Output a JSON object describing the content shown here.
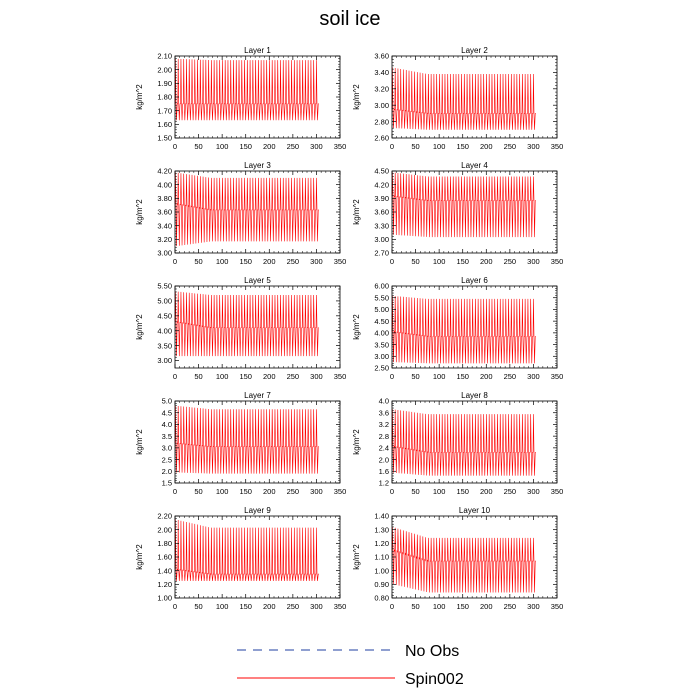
{
  "title": "soil ice",
  "chart_data": [
    {
      "type": "line",
      "title": "Layer 1",
      "ylabel": "kg/m^2",
      "xlim": [
        0,
        350
      ],
      "xticks": [
        0,
        50,
        100,
        150,
        200,
        250,
        300,
        350
      ],
      "ylim": [
        1.5,
        2.1
      ],
      "yticks": [
        "1.50",
        "1.60",
        "1.70",
        "1.80",
        "1.90",
        "2.00",
        "2.10"
      ],
      "cycles": 52,
      "x_end": 305,
      "series": [
        {
          "name": "Spin002",
          "color": "#ff0000",
          "osc_max_start": 2.08,
          "osc_max_end": 2.07,
          "osc_min_start": 1.63,
          "osc_min_end": 1.63,
          "mid_start": 1.75,
          "mid_end": 1.75
        }
      ]
    },
    {
      "type": "line",
      "title": "Layer 2",
      "ylabel": "kg/m^2",
      "xlim": [
        0,
        350
      ],
      "xticks": [
        0,
        50,
        100,
        150,
        200,
        250,
        300,
        350
      ],
      "ylim": [
        2.6,
        3.6
      ],
      "yticks": [
        "2.60",
        "2.80",
        "3.00",
        "3.20",
        "3.40",
        "3.60"
      ],
      "cycles": 52,
      "x_end": 305,
      "series": [
        {
          "name": "Spin002",
          "color": "#ff0000",
          "osc_max_start": 3.46,
          "osc_max_end": 3.38,
          "osc_min_start": 2.72,
          "osc_min_end": 2.7,
          "mid_start": 2.95,
          "mid_end": 2.9
        }
      ]
    },
    {
      "type": "line",
      "title": "Layer 3",
      "ylabel": "kg/m^2",
      "xlim": [
        0,
        350
      ],
      "xticks": [
        0,
        50,
        100,
        150,
        200,
        250,
        300,
        350
      ],
      "ylim": [
        3.0,
        4.2
      ],
      "yticks": [
        "3.00",
        "3.20",
        "3.40",
        "3.60",
        "3.80",
        "4.00",
        "4.20"
      ],
      "cycles": 52,
      "x_end": 305,
      "series": [
        {
          "name": "Spin002",
          "color": "#ff0000",
          "osc_max_start": 4.18,
          "osc_max_end": 4.1,
          "osc_min_start": 3.1,
          "osc_min_end": 3.17,
          "mid_start": 3.72,
          "mid_end": 3.63
        }
      ]
    },
    {
      "type": "line",
      "title": "Layer 4",
      "ylabel": "kg/m^2",
      "xlim": [
        0,
        350
      ],
      "xticks": [
        0,
        50,
        100,
        150,
        200,
        250,
        300,
        350
      ],
      "ylim": [
        2.7,
        4.5
      ],
      "yticks": [
        "2.70",
        "3.00",
        "3.30",
        "3.60",
        "3.90",
        "4.20",
        "4.50"
      ],
      "cycles": 52,
      "x_end": 305,
      "series": [
        {
          "name": "Spin002",
          "color": "#ff0000",
          "osc_max_start": 4.47,
          "osc_max_end": 4.38,
          "osc_min_start": 3.1,
          "osc_min_end": 3.05,
          "mid_start": 3.95,
          "mid_end": 3.85
        }
      ]
    },
    {
      "type": "line",
      "title": "Layer 5",
      "ylabel": "kg/m^2",
      "xlim": [
        0,
        350
      ],
      "xticks": [
        0,
        50,
        100,
        150,
        200,
        250,
        300,
        350
      ],
      "ylim": [
        2.75,
        5.5
      ],
      "yticks": [
        "3.00",
        "3.50",
        "4.00",
        "4.50",
        "5.00",
        "5.50"
      ],
      "cycles": 52,
      "x_end": 305,
      "series": [
        {
          "name": "Spin002",
          "color": "#ff0000",
          "osc_max_start": 5.32,
          "osc_max_end": 5.2,
          "osc_min_start": 3.15,
          "osc_min_end": 3.15,
          "mid_start": 4.3,
          "mid_end": 4.1
        }
      ]
    },
    {
      "type": "line",
      "title": "Layer 6",
      "ylabel": "kg/m^2",
      "xlim": [
        0,
        350
      ],
      "xticks": [
        0,
        50,
        100,
        150,
        200,
        250,
        300,
        350
      ],
      "ylim": [
        2.5,
        6.0
      ],
      "yticks": [
        "2.50",
        "3.00",
        "3.50",
        "4.00",
        "4.50",
        "5.00",
        "5.50",
        "6.00"
      ],
      "cycles": 52,
      "x_end": 305,
      "series": [
        {
          "name": "Spin002",
          "color": "#ff0000",
          "osc_max_start": 5.58,
          "osc_max_end": 5.45,
          "osc_min_start": 2.75,
          "osc_min_end": 2.7,
          "mid_start": 4.05,
          "mid_end": 3.85
        }
      ]
    },
    {
      "type": "line",
      "title": "Layer 7",
      "ylabel": "kg/m^2",
      "xlim": [
        0,
        350
      ],
      "xticks": [
        0,
        50,
        100,
        150,
        200,
        250,
        300,
        350
      ],
      "ylim": [
        1.5,
        5.0
      ],
      "yticks": [
        "1.5",
        "2.0",
        "2.5",
        "3.0",
        "3.5",
        "4.0",
        "4.5",
        "5.0"
      ],
      "cycles": 52,
      "x_end": 305,
      "series": [
        {
          "name": "Spin002",
          "color": "#ff0000",
          "osc_max_start": 4.8,
          "osc_max_end": 4.65,
          "osc_min_start": 1.95,
          "osc_min_end": 1.9,
          "mid_start": 3.2,
          "mid_end": 3.05
        }
      ]
    },
    {
      "type": "line",
      "title": "Layer 8",
      "ylabel": "kg/m^2",
      "xlim": [
        0,
        350
      ],
      "xticks": [
        0,
        50,
        100,
        150,
        200,
        250,
        300,
        350
      ],
      "ylim": [
        1.2,
        4.0
      ],
      "yticks": [
        "1.2",
        "1.6",
        "2.0",
        "2.4",
        "2.8",
        "3.2",
        "3.6",
        "4.0"
      ],
      "cycles": 52,
      "x_end": 305,
      "series": [
        {
          "name": "Spin002",
          "color": "#ff0000",
          "osc_max_start": 3.72,
          "osc_max_end": 3.55,
          "osc_min_start": 1.55,
          "osc_min_end": 1.45,
          "mid_start": 2.45,
          "mid_end": 2.25
        }
      ]
    },
    {
      "type": "line",
      "title": "Layer 9",
      "ylabel": "kg/m^2",
      "xlim": [
        0,
        350
      ],
      "xticks": [
        0,
        50,
        100,
        150,
        200,
        250,
        300,
        350
      ],
      "ylim": [
        1.0,
        2.2
      ],
      "yticks": [
        "1.00",
        "1.20",
        "1.40",
        "1.60",
        "1.80",
        "2.00",
        "2.20"
      ],
      "cycles": 52,
      "x_end": 305,
      "series": [
        {
          "name": "Spin002",
          "color": "#ff0000",
          "osc_max_start": 2.15,
          "osc_max_end": 2.03,
          "osc_min_start": 1.25,
          "osc_min_end": 1.25,
          "mid_start": 1.42,
          "mid_end": 1.35
        }
      ]
    },
    {
      "type": "line",
      "title": "Layer 10",
      "ylabel": "kg/m^2",
      "xlim": [
        0,
        350
      ],
      "xticks": [
        0,
        50,
        100,
        150,
        200,
        250,
        300,
        350
      ],
      "ylim": [
        0.8,
        1.4
      ],
      "yticks": [
        "0.80",
        "0.90",
        "1.00",
        "1.10",
        "1.20",
        "1.30",
        "1.40"
      ],
      "cycles": 52,
      "x_end": 305,
      "series": [
        {
          "name": "Spin002",
          "color": "#ff0000",
          "osc_max_start": 1.32,
          "osc_max_end": 1.24,
          "osc_min_start": 0.9,
          "osc_min_end": 0.84,
          "mid_start": 1.15,
          "mid_end": 1.07
        }
      ]
    }
  ],
  "legend": [
    {
      "label": "No Obs",
      "color": "#1f3fa0",
      "style": "dashed"
    },
    {
      "label": "Spin002",
      "color": "#ff0000",
      "style": "solid"
    }
  ]
}
